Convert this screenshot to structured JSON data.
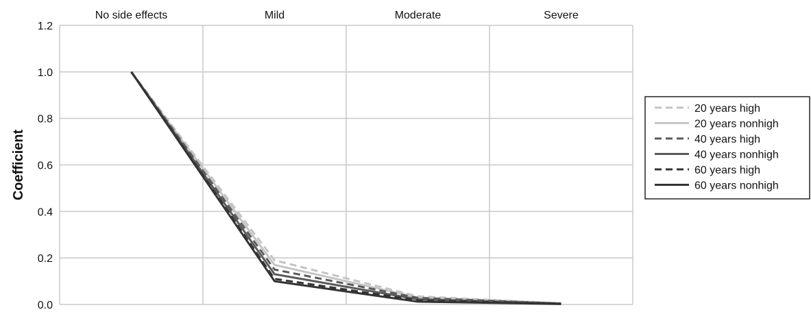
{
  "chart_data": {
    "type": "line",
    "title": "",
    "xlabel": "",
    "ylabel": "Coefficient",
    "categories": [
      "No side effects",
      "Mild",
      "Moderate",
      "Severe"
    ],
    "ylim": [
      0,
      1.2
    ],
    "yticks": [
      "0.0",
      "0.2",
      "0.4",
      "0.6",
      "0.8",
      "1.0",
      "1.2"
    ],
    "grid": true,
    "legend_position": "right",
    "series": [
      {
        "name": "20 years high",
        "values": [
          1.0,
          0.19,
          0.035,
          0.005
        ],
        "color": "#c4c4c4",
        "dashed": true
      },
      {
        "name": "20 years nonhigh",
        "values": [
          1.0,
          0.17,
          0.03,
          0.005
        ],
        "color": "#c4c4c4",
        "dashed": false
      },
      {
        "name": "40 years high",
        "values": [
          1.0,
          0.15,
          0.028,
          0.004
        ],
        "color": "#5a5a5a",
        "dashed": true
      },
      {
        "name": "40 years nonhigh",
        "values": [
          1.0,
          0.13,
          0.022,
          0.004
        ],
        "color": "#5a5a5a",
        "dashed": false
      },
      {
        "name": "60 years high",
        "values": [
          1.0,
          0.11,
          0.018,
          0.003
        ],
        "color": "#333333",
        "dashed": true
      },
      {
        "name": "60 years nonhigh",
        "values": [
          1.0,
          0.1,
          0.012,
          0.002
        ],
        "color": "#333333",
        "dashed": false
      }
    ]
  }
}
